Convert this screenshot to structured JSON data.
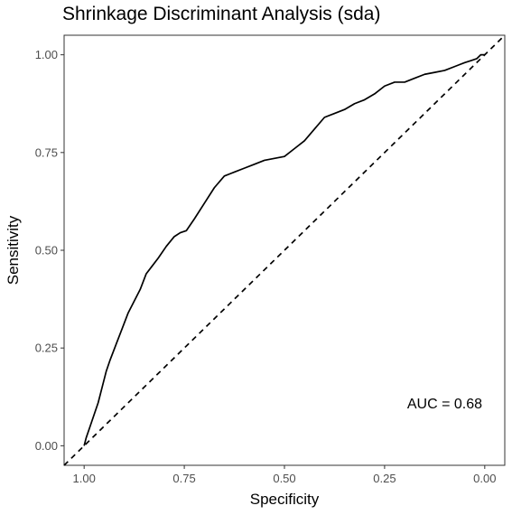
{
  "chart_data": {
    "type": "line",
    "title": "Shrinkage Discriminant Analysis (sda)",
    "xlabel": "Specificity",
    "ylabel": "Sensitivity",
    "xlim": [
      1.05,
      -0.05
    ],
    "ylim": [
      -0.05,
      1.05
    ],
    "x_reversed": true,
    "xticks": [
      1.0,
      0.75,
      0.5,
      0.25,
      0.0
    ],
    "xtick_labels": [
      "1.00",
      "0.75",
      "0.50",
      "0.25",
      "0.00"
    ],
    "yticks": [
      0.0,
      0.25,
      0.5,
      0.75,
      1.0
    ],
    "ytick_labels": [
      "0.00",
      "0.25",
      "0.50",
      "0.75",
      "1.00"
    ],
    "grid": false,
    "series": [
      {
        "style": "solid",
        "color": "#000000",
        "x": [
          1.0,
          0.995,
          0.985,
          0.975,
          0.965,
          0.955,
          0.945,
          0.935,
          0.92,
          0.905,
          0.89,
          0.875,
          0.86,
          0.845,
          0.83,
          0.815,
          0.795,
          0.775,
          0.76,
          0.745,
          0.725,
          0.7,
          0.675,
          0.65,
          0.625,
          0.6,
          0.575,
          0.55,
          0.525,
          0.5,
          0.475,
          0.45,
          0.425,
          0.4,
          0.375,
          0.35,
          0.325,
          0.3,
          0.275,
          0.25,
          0.225,
          0.2,
          0.175,
          0.15,
          0.125,
          0.1,
          0.075,
          0.05,
          0.035,
          0.02,
          0.01,
          0.0
        ],
        "y": [
          0.0,
          0.02,
          0.05,
          0.08,
          0.11,
          0.15,
          0.19,
          0.22,
          0.26,
          0.3,
          0.34,
          0.37,
          0.4,
          0.44,
          0.46,
          0.48,
          0.51,
          0.535,
          0.545,
          0.55,
          0.58,
          0.62,
          0.66,
          0.69,
          0.7,
          0.71,
          0.72,
          0.73,
          0.735,
          0.74,
          0.76,
          0.78,
          0.81,
          0.84,
          0.85,
          0.86,
          0.875,
          0.885,
          0.9,
          0.92,
          0.93,
          0.93,
          0.94,
          0.95,
          0.955,
          0.96,
          0.97,
          0.98,
          0.985,
          0.99,
          1.0,
          1.0
        ]
      },
      {
        "style": "dashed",
        "color": "#000000",
        "x": [
          1.05,
          -0.05
        ],
        "y": [
          -0.05,
          1.05
        ]
      }
    ],
    "annotations": [
      {
        "text": "AUC = 0.68",
        "x": 0.1,
        "y": 0.11
      }
    ]
  }
}
